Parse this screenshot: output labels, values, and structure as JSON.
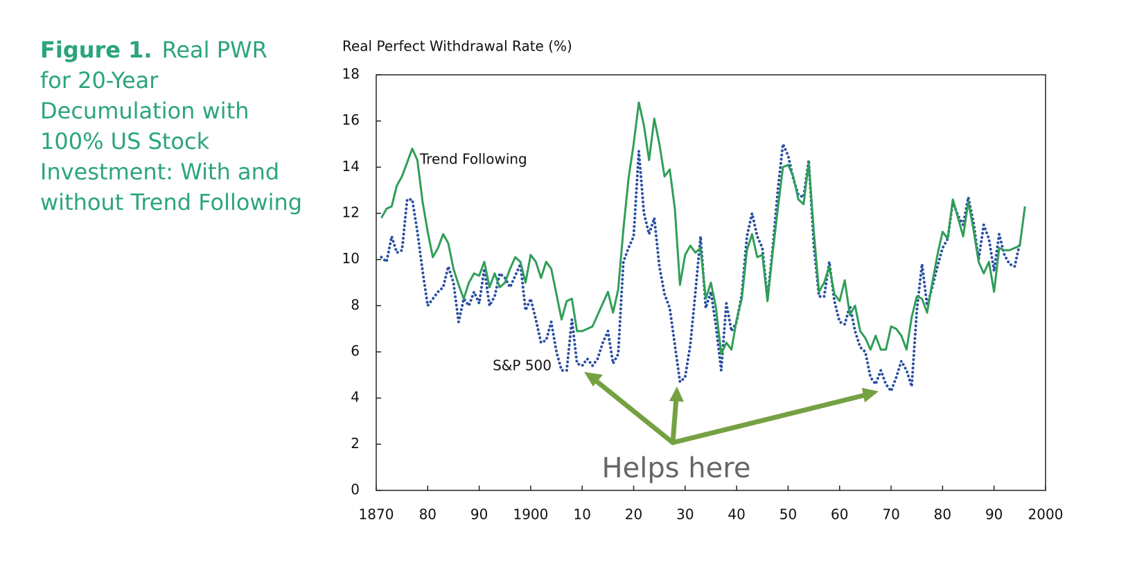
{
  "chart_data": {
    "type": "line",
    "figure_label": "Figure 1.",
    "title": "Real PWR for 20-Year Decumulation with 100% US Stock Investment: With and without Trend Following",
    "y_label": "Real Perfect Withdrawal Rate (%)",
    "annotation": "Helps here",
    "xlim": [
      1870,
      2000
    ],
    "xticks": [
      1870,
      {
        "value": 1880,
        "label": "80"
      },
      {
        "value": 1890,
        "label": "90"
      },
      1900,
      {
        "value": 1910,
        "label": "10"
      },
      {
        "value": 1920,
        "label": "20"
      },
      {
        "value": 1930,
        "label": "30"
      },
      {
        "value": 1940,
        "label": "40"
      },
      {
        "value": 1950,
        "label": "50"
      },
      {
        "value": 1960,
        "label": "60"
      },
      {
        "value": 1970,
        "label": "70"
      },
      {
        "value": 1980,
        "label": "80"
      },
      {
        "value": 1990,
        "label": "90"
      },
      2000
    ],
    "ylim": [
      0,
      18
    ],
    "yticks": [
      0,
      2,
      4,
      6,
      8,
      10,
      12,
      14,
      16,
      18
    ],
    "x": [
      1871,
      1872,
      1873,
      1874,
      1875,
      1876,
      1877,
      1878,
      1879,
      1880,
      1881,
      1882,
      1883,
      1884,
      1885,
      1886,
      1887,
      1888,
      1889,
      1890,
      1891,
      1892,
      1893,
      1894,
      1895,
      1896,
      1897,
      1898,
      1899,
      1900,
      1901,
      1902,
      1903,
      1904,
      1905,
      1906,
      1907,
      1908,
      1909,
      1910,
      1911,
      1912,
      1913,
      1914,
      1915,
      1916,
      1917,
      1918,
      1919,
      1920,
      1921,
      1922,
      1923,
      1924,
      1925,
      1926,
      1927,
      1928,
      1929,
      1930,
      1931,
      1932,
      1933,
      1934,
      1935,
      1936,
      1937,
      1938,
      1939,
      1940,
      1941,
      1942,
      1943,
      1944,
      1945,
      1946,
      1947,
      1948,
      1949,
      1950,
      1951,
      1952,
      1953,
      1954,
      1955,
      1956,
      1957,
      1958,
      1959,
      1960,
      1961,
      1962,
      1963,
      1964,
      1965,
      1966,
      1967,
      1968,
      1969,
      1970,
      1971,
      1972,
      1973,
      1974,
      1975,
      1976,
      1977,
      1978,
      1979,
      1980,
      1981,
      1982,
      1983,
      1984,
      1985,
      1986,
      1987,
      1988,
      1989,
      1990,
      1991,
      1992,
      1993,
      1994,
      1995,
      1996
    ],
    "series": [
      {
        "name": "Trend Following",
        "color": "#2f9e57",
        "style": "solid",
        "values": [
          11.8,
          12.2,
          12.3,
          13.2,
          13.6,
          14.2,
          14.8,
          14.3,
          12.5,
          11.2,
          10.1,
          10.5,
          11.1,
          10.7,
          9.6,
          8.9,
          8.3,
          9.0,
          9.4,
          9.3,
          9.9,
          8.8,
          9.4,
          8.8,
          9.0,
          9.6,
          10.1,
          9.9,
          9.0,
          10.2,
          9.9,
          9.2,
          9.9,
          9.6,
          8.5,
          7.4,
          8.2,
          8.3,
          6.9,
          6.9,
          7.0,
          7.1,
          7.6,
          8.1,
          8.6,
          7.7,
          8.7,
          11.3,
          13.5,
          15.0,
          16.8,
          15.8,
          14.3,
          16.1,
          15.0,
          13.6,
          13.9,
          12.2,
          8.9,
          10.2,
          10.6,
          10.3,
          10.5,
          8.3,
          9.0,
          7.9,
          5.9,
          6.4,
          6.1,
          7.4,
          8.3,
          10.4,
          11.1,
          10.1,
          10.2,
          8.2,
          10.3,
          12.2,
          14.0,
          14.1,
          13.6,
          12.6,
          12.4,
          14.2,
          11.2,
          8.6,
          9.0,
          9.7,
          8.5,
          8.2,
          9.1,
          7.6,
          8.0,
          6.9,
          6.6,
          6.1,
          6.7,
          6.1,
          6.1,
          7.1,
          7.0,
          6.7,
          6.1,
          7.5,
          8.4,
          8.3,
          7.7,
          9.0,
          10.2,
          11.2,
          10.9,
          12.6,
          11.8,
          11.0,
          12.5,
          11.3,
          9.9,
          9.4,
          9.9,
          8.6,
          10.5,
          10.4,
          10.4,
          10.5,
          10.6,
          12.3
        ]
      },
      {
        "name": "S&P 500",
        "color": "#2a4fa3",
        "style": "dotted",
        "values": [
          10.1,
          9.9,
          11.0,
          10.3,
          10.4,
          12.6,
          12.6,
          11.2,
          9.5,
          8.0,
          8.3,
          8.6,
          8.8,
          9.7,
          9.0,
          7.3,
          8.3,
          8.0,
          8.6,
          8.1,
          9.6,
          8.0,
          8.4,
          9.4,
          9.2,
          8.8,
          9.3,
          9.8,
          7.8,
          8.3,
          7.4,
          6.4,
          6.5,
          7.3,
          6.0,
          5.2,
          5.2,
          7.4,
          5.5,
          5.4,
          5.7,
          5.4,
          5.7,
          6.4,
          6.9,
          5.5,
          5.9,
          9.9,
          10.5,
          11.0,
          14.7,
          12.0,
          11.1,
          11.8,
          9.7,
          8.5,
          7.9,
          6.3,
          4.7,
          4.9,
          6.3,
          8.6,
          11.0,
          7.9,
          8.6,
          7.1,
          5.2,
          8.1,
          6.9,
          7.3,
          8.5,
          11.0,
          12.0,
          11.0,
          10.5,
          8.3,
          10.5,
          13.0,
          15.0,
          14.5,
          13.5,
          12.8,
          12.7,
          14.3,
          10.6,
          8.4,
          8.4,
          9.9,
          8.2,
          7.3,
          7.2,
          8.0,
          6.9,
          6.2,
          6.0,
          4.9,
          4.6,
          5.2,
          4.6,
          4.3,
          4.9,
          5.6,
          5.2,
          4.5,
          7.8,
          9.8,
          8.0,
          8.8,
          9.7,
          10.5,
          10.9,
          12.5,
          11.9,
          11.5,
          12.7,
          11.6,
          10.0,
          11.5,
          10.9,
          9.5,
          11.1,
          10.2,
          9.8,
          9.7,
          10.7,
          null
        ]
      }
    ]
  }
}
